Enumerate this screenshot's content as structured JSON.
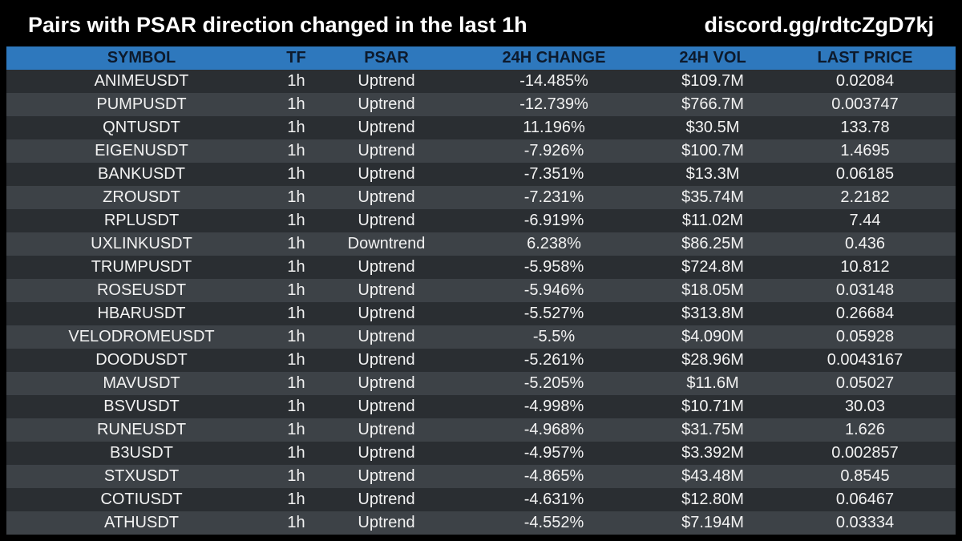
{
  "header": {
    "title": "Pairs with PSAR direction changed in the last 1h",
    "link": "discord.gg/rdtcZgD7kj"
  },
  "colors": {
    "background": "#000000",
    "header_row": "#2e78bd",
    "header_text": "#0d1a2c",
    "row_dark": "#2a2e32",
    "row_light": "#3d4247",
    "text": "#f2f2f2"
  },
  "table": {
    "columns": [
      "SYMBOL",
      "TF",
      "PSAR",
      "24H CHANGE",
      "24H VOL",
      "LAST PRICE"
    ],
    "rows": [
      {
        "symbol": "ANIMEUSDT",
        "tf": "1h",
        "psar": "Uptrend",
        "change": "-14.485%",
        "vol": "$109.7M",
        "price": "0.02084"
      },
      {
        "symbol": "PUMPUSDT",
        "tf": "1h",
        "psar": "Uptrend",
        "change": "-12.739%",
        "vol": "$766.7M",
        "price": "0.003747"
      },
      {
        "symbol": "QNTUSDT",
        "tf": "1h",
        "psar": "Uptrend",
        "change": "11.196%",
        "vol": "$30.5M",
        "price": "133.78"
      },
      {
        "symbol": "EIGENUSDT",
        "tf": "1h",
        "psar": "Uptrend",
        "change": "-7.926%",
        "vol": "$100.7M",
        "price": "1.4695"
      },
      {
        "symbol": "BANKUSDT",
        "tf": "1h",
        "psar": "Uptrend",
        "change": "-7.351%",
        "vol": "$13.3M",
        "price": "0.06185"
      },
      {
        "symbol": "ZROUSDT",
        "tf": "1h",
        "psar": "Uptrend",
        "change": "-7.231%",
        "vol": "$35.74M",
        "price": "2.2182"
      },
      {
        "symbol": "RPLUSDT",
        "tf": "1h",
        "psar": "Uptrend",
        "change": "-6.919%",
        "vol": "$11.02M",
        "price": "7.44"
      },
      {
        "symbol": "UXLINKUSDT",
        "tf": "1h",
        "psar": "Downtrend",
        "change": "6.238%",
        "vol": "$86.25M",
        "price": "0.436"
      },
      {
        "symbol": "TRUMPUSDT",
        "tf": "1h",
        "psar": "Uptrend",
        "change": "-5.958%",
        "vol": "$724.8M",
        "price": "10.812"
      },
      {
        "symbol": "ROSEUSDT",
        "tf": "1h",
        "psar": "Uptrend",
        "change": "-5.946%",
        "vol": "$18.05M",
        "price": "0.03148"
      },
      {
        "symbol": "HBARUSDT",
        "tf": "1h",
        "psar": "Uptrend",
        "change": "-5.527%",
        "vol": "$313.8M",
        "price": "0.26684"
      },
      {
        "symbol": "VELODROMEUSDT",
        "tf": "1h",
        "psar": "Uptrend",
        "change": "-5.5%",
        "vol": "$4.090M",
        "price": "0.05928"
      },
      {
        "symbol": "DOODUSDT",
        "tf": "1h",
        "psar": "Uptrend",
        "change": "-5.261%",
        "vol": "$28.96M",
        "price": "0.0043167"
      },
      {
        "symbol": "MAVUSDT",
        "tf": "1h",
        "psar": "Uptrend",
        "change": "-5.205%",
        "vol": "$11.6M",
        "price": "0.05027"
      },
      {
        "symbol": "BSVUSDT",
        "tf": "1h",
        "psar": "Uptrend",
        "change": "-4.998%",
        "vol": "$10.71M",
        "price": "30.03"
      },
      {
        "symbol": "RUNEUSDT",
        "tf": "1h",
        "psar": "Uptrend",
        "change": "-4.968%",
        "vol": "$31.75M",
        "price": "1.626"
      },
      {
        "symbol": "B3USDT",
        "tf": "1h",
        "psar": "Uptrend",
        "change": "-4.957%",
        "vol": "$3.392M",
        "price": "0.002857"
      },
      {
        "symbol": "STXUSDT",
        "tf": "1h",
        "psar": "Uptrend",
        "change": "-4.865%",
        "vol": "$43.48M",
        "price": "0.8545"
      },
      {
        "symbol": "COTIUSDT",
        "tf": "1h",
        "psar": "Uptrend",
        "change": "-4.631%",
        "vol": "$12.80M",
        "price": "0.06467"
      },
      {
        "symbol": "ATHUSDT",
        "tf": "1h",
        "psar": "Uptrend",
        "change": "-4.552%",
        "vol": "$7.194M",
        "price": "0.03334"
      }
    ]
  }
}
